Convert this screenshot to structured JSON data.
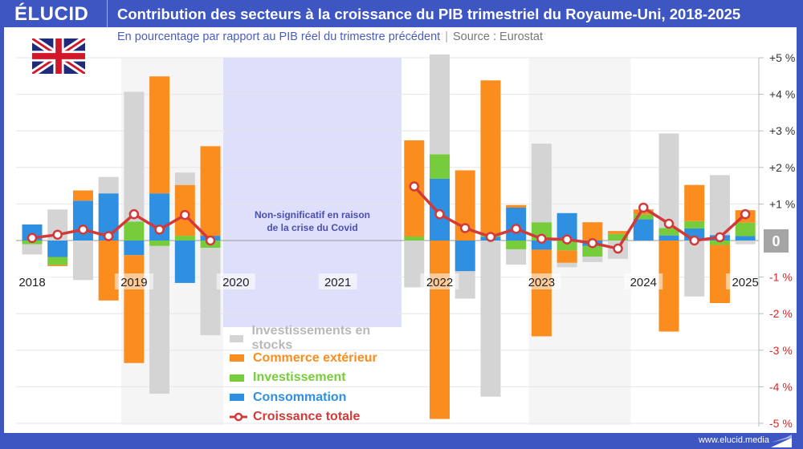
{
  "header": {
    "logo": "ÉLUCID",
    "title": "Contribution des secteurs à la croissance du PIB trimestriel du Royaume-Uni, 2018-2025",
    "subtitle": "En pourcentage par rapport au PIB réel du trimestre précédent",
    "source": "Source : Eurostat",
    "separator": "|"
  },
  "footer": {
    "url": "www.elucid.media"
  },
  "flag": "united-kingdom-flag",
  "colors": {
    "brand": "#3e56c2",
    "consommation": "#2f8fe0",
    "investissement": "#77cc3c",
    "commerce": "#fb8c1e",
    "stocks": "#d4d4d4",
    "croissance": "#d23a3a",
    "covid_band": "#dedffa",
    "negative_tick": "#d62a2a"
  },
  "chart_data": {
    "type": "bar",
    "stacked": true,
    "categories": [
      "2018-T1",
      "2018-T2",
      "2018-T3",
      "2018-T4",
      "2019-T1",
      "2019-T2",
      "2019-T3",
      "2019-T4",
      "2020-T1",
      "2020-T2",
      "2020-T3",
      "2020-T4",
      "2021-T1",
      "2021-T2",
      "2021-T3",
      "2021-T4",
      "2022-T1",
      "2022-T2",
      "2022-T3",
      "2022-T4",
      "2023-T1",
      "2023-T2",
      "2023-T3",
      "2023-T4",
      "2024-T1",
      "2024-T2",
      "2024-T3",
      "2024-T4",
      "2025-T1"
    ],
    "x_tick_labels": [
      "2018",
      "2019",
      "2020",
      "2021",
      "2022",
      "2023",
      "2024",
      "2025"
    ],
    "y_tick_labels": [
      "+5 %",
      "+4 %",
      "+3 %",
      "+2 %",
      "+1 %",
      "0",
      "-1 %",
      "-2 %",
      "-3 %",
      "-4 %",
      "-5 %"
    ],
    "ylim": [
      -5,
      5
    ],
    "grid": true,
    "series": [
      {
        "name": "Consommation",
        "key": "consommation",
        "values": [
          0.44,
          -0.45,
          1.09,
          1.29,
          -0.4,
          1.29,
          -1.16,
          0.13,
          null,
          null,
          null,
          null,
          null,
          null,
          null,
          0,
          1.69,
          -0.84,
          0.1,
          0.9,
          -0.25,
          0.75,
          -0.15,
          0,
          0.58,
          0.14,
          0.33,
          0.15,
          0.12
        ]
      },
      {
        "name": "Investissement",
        "key": "investissement",
        "values": [
          -0.1,
          -0.22,
          0,
          0,
          0.52,
          -0.15,
          0.13,
          -0.2,
          null,
          null,
          null,
          null,
          null,
          null,
          null,
          0.11,
          0.67,
          0,
          0.03,
          -0.24,
          0.5,
          -0.27,
          -0.29,
          0.18,
          0.14,
          0.2,
          0.2,
          -0.12,
          0.37
        ]
      },
      {
        "name": "Commerce extérieur",
        "key": "commerce",
        "values": [
          0,
          -0.03,
          0.28,
          -1.64,
          -2.95,
          3.2,
          1.39,
          2.45,
          null,
          null,
          null,
          null,
          null,
          null,
          null,
          2.63,
          -4.88,
          1.92,
          4.25,
          0.07,
          -2.37,
          -0.34,
          0.5,
          0.08,
          0.13,
          -2.49,
          0.99,
          -1.59,
          0.34
        ]
      },
      {
        "name": "Investissements en stocks",
        "key": "stocks",
        "values": [
          -0.28,
          0.85,
          -1.08,
          0.45,
          3.55,
          -4.04,
          0.34,
          -2.39,
          null,
          null,
          null,
          null,
          null,
          null,
          null,
          -1.28,
          2.9,
          -0.75,
          -4.27,
          -0.42,
          2.15,
          -0.12,
          -0.15,
          -0.5,
          0,
          2.59,
          -1.53,
          1.64,
          -0.1
        ]
      }
    ],
    "line": {
      "name": "Croissance totale",
      "key": "croissance",
      "values": [
        0.07,
        0.16,
        0.3,
        0.12,
        0.72,
        0.3,
        0.7,
        0.0,
        null,
        null,
        null,
        null,
        null,
        null,
        null,
        1.48,
        0.72,
        0.34,
        0.1,
        0.32,
        0.05,
        0.03,
        -0.07,
        -0.22,
        0.9,
        0.46,
        0.0,
        0.09,
        0.72
      ]
    },
    "annotation": "Non-significatif en raison de la crise du Covid",
    "annotation_lines": [
      "Non-significatif en raison",
      "de la crise du Covid"
    ],
    "legend": [
      "Investissements en stocks",
      "Commerce extérieur",
      "Investissement",
      "Consommation",
      "Croissance totale"
    ],
    "legend_placement": "bottom-center"
  }
}
